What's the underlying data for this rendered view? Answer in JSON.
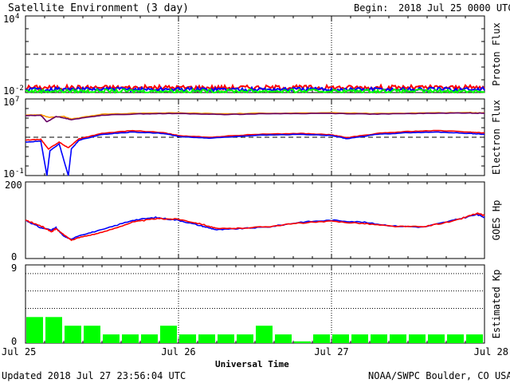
{
  "header": {
    "title": "Satellite Environment (3 day)",
    "begin_label": "Begin:",
    "begin_value": "2018 Jul 25 0000 UTC"
  },
  "footer": {
    "updated": "Updated 2018 Jul 27 23:56:04 UTC",
    "credit": "NOAA/SWPC Boulder, CO USA",
    "xlabel": "Universal Time"
  },
  "colors": {
    "red": "#ff0000",
    "blue": "#0000ff",
    "green": "#00ff00",
    "orange": "#ff9900",
    "purple": "#660066",
    "black": "#000000"
  },
  "chart_data": [
    {
      "id": "proton_flux",
      "type": "line",
      "ylabel": "Proton Flux",
      "yscale": "log",
      "ylim": [
        0.01,
        10000
      ],
      "yticks": [
        {
          "exp": "4"
        },
        {
          "exp": "-2"
        }
      ],
      "threshold": 10,
      "x_range_days": [
        0,
        3
      ],
      "series": [
        {
          "color": "red",
          "level": 0.025,
          "noise": 0.18
        },
        {
          "color": "blue",
          "level": 0.018,
          "noise": 0.15
        },
        {
          "color": "green",
          "level": 0.013,
          "noise": 0.14
        }
      ]
    },
    {
      "id": "electron_flux",
      "type": "line",
      "ylabel": "Electron Flux",
      "yscale": "log",
      "ylim": [
        0.1,
        10000000
      ],
      "yticks": [
        {
          "exp": "7"
        },
        {
          "exp": "-1"
        }
      ],
      "threshold": 1000,
      "x_range_days": [
        0,
        3
      ],
      "series": [
        {
          "color": "orange",
          "points": [
            [
              0,
              200000
            ],
            [
              0.1,
              230000
            ],
            [
              0.15,
              120000
            ],
            [
              0.25,
              150000
            ],
            [
              0.3,
              80000
            ],
            [
              0.5,
              250000
            ],
            [
              0.75,
              330000
            ],
            [
              1.0,
              350000
            ],
            [
              1.3,
              280000
            ],
            [
              1.6,
              330000
            ],
            [
              2.0,
              350000
            ],
            [
              2.3,
              300000
            ],
            [
              2.6,
              350000
            ],
            [
              2.9,
              380000
            ],
            [
              3,
              350000
            ]
          ]
        },
        {
          "color": "purple",
          "points": [
            [
              0,
              180000
            ],
            [
              0.1,
              200000
            ],
            [
              0.14,
              40000
            ],
            [
              0.2,
              150000
            ],
            [
              0.3,
              70000
            ],
            [
              0.5,
              200000
            ],
            [
              0.75,
              280000
            ],
            [
              1.0,
              300000
            ],
            [
              1.3,
              240000
            ],
            [
              1.6,
              290000
            ],
            [
              2.0,
              310000
            ],
            [
              2.3,
              260000
            ],
            [
              2.6,
              310000
            ],
            [
              2.9,
              340000
            ],
            [
              3,
              320000
            ]
          ]
        },
        {
          "color": "red",
          "points": [
            [
              0,
              500
            ],
            [
              0.1,
              600
            ],
            [
              0.15,
              60
            ],
            [
              0.22,
              300
            ],
            [
              0.28,
              80
            ],
            [
              0.35,
              700
            ],
            [
              0.5,
              2500
            ],
            [
              0.7,
              5000
            ],
            [
              0.9,
              3000
            ],
            [
              1.0,
              1500
            ],
            [
              1.2,
              1000
            ],
            [
              1.5,
              2000
            ],
            [
              1.8,
              2500
            ],
            [
              2.0,
              1800
            ],
            [
              2.1,
              900
            ],
            [
              2.3,
              2500
            ],
            [
              2.5,
              4000
            ],
            [
              2.7,
              5000
            ],
            [
              2.9,
              3500
            ],
            [
              3,
              2800
            ]
          ]
        },
        {
          "color": "blue",
          "points": [
            [
              0,
              300
            ],
            [
              0.1,
              400
            ],
            [
              0.14,
              0.1
            ],
            [
              0.16,
              40
            ],
            [
              0.22,
              200
            ],
            [
              0.28,
              0.1
            ],
            [
              0.3,
              60
            ],
            [
              0.35,
              500
            ],
            [
              0.5,
              2000
            ],
            [
              0.7,
              3500
            ],
            [
              0.9,
              2500
            ],
            [
              1.0,
              1200
            ],
            [
              1.2,
              800
            ],
            [
              1.5,
              1600
            ],
            [
              1.8,
              2000
            ],
            [
              2.0,
              1500
            ],
            [
              2.1,
              700
            ],
            [
              2.3,
              2000
            ],
            [
              2.5,
              3000
            ],
            [
              2.7,
              3500
            ],
            [
              2.9,
              2500
            ],
            [
              3,
              2000
            ]
          ]
        }
      ]
    },
    {
      "id": "goes_hp",
      "type": "line",
      "ylabel": "GOES Hp",
      "yscale": "linear",
      "ylim": [
        0,
        200
      ],
      "yticks": [
        {
          "value": "200"
        },
        {
          "value": "0"
        }
      ],
      "x_range_days": [
        0,
        3
      ],
      "series": [
        {
          "color": "blue",
          "points": [
            [
              0,
              100
            ],
            [
              0.1,
              80
            ],
            [
              0.17,
              75
            ],
            [
              0.2,
              80
            ],
            [
              0.25,
              58
            ],
            [
              0.3,
              50
            ],
            [
              0.35,
              60
            ],
            [
              0.5,
              75
            ],
            [
              0.7,
              100
            ],
            [
              0.85,
              107
            ],
            [
              1.0,
              100
            ],
            [
              1.15,
              85
            ],
            [
              1.25,
              75
            ],
            [
              1.4,
              78
            ],
            [
              1.6,
              83
            ],
            [
              1.8,
              95
            ],
            [
              2.0,
              100
            ],
            [
              2.2,
              95
            ],
            [
              2.4,
              85
            ],
            [
              2.6,
              82
            ],
            [
              2.8,
              100
            ],
            [
              2.95,
              115
            ],
            [
              3,
              108
            ]
          ]
        },
        {
          "color": "red",
          "points": [
            [
              0,
              100
            ],
            [
              0.1,
              85
            ],
            [
              0.17,
              70
            ],
            [
              0.2,
              78
            ],
            [
              0.25,
              62
            ],
            [
              0.3,
              48
            ],
            [
              0.35,
              55
            ],
            [
              0.5,
              68
            ],
            [
              0.7,
              95
            ],
            [
              0.85,
              104
            ],
            [
              1.0,
              103
            ],
            [
              1.15,
              90
            ],
            [
              1.25,
              78
            ],
            [
              1.4,
              79
            ],
            [
              1.6,
              84
            ],
            [
              1.8,
              93
            ],
            [
              2.0,
              97
            ],
            [
              2.2,
              92
            ],
            [
              2.4,
              84
            ],
            [
              2.6,
              83
            ],
            [
              2.8,
              98
            ],
            [
              2.95,
              118
            ],
            [
              3,
              112
            ]
          ]
        }
      ]
    },
    {
      "id": "estimated_kp",
      "type": "bar",
      "ylabel": "Estimated Kp",
      "ylim": [
        0,
        9
      ],
      "yticks": [
        {
          "value": "9"
        },
        {
          "value": "0"
        }
      ],
      "dotted_levels": [
        4,
        6,
        8
      ],
      "x_range_days": [
        0,
        3
      ],
      "bar_color": "green",
      "values": [
        3,
        3,
        2,
        2,
        1,
        1,
        1,
        2,
        1,
        1,
        1,
        1,
        2,
        1,
        0.2,
        1,
        1,
        1,
        1,
        1,
        1,
        1,
        1,
        1
      ]
    }
  ],
  "x_axis": {
    "ticks": [
      {
        "day": 0,
        "label": "Jul 25"
      },
      {
        "day": 1,
        "label": "Jul 26"
      },
      {
        "day": 2,
        "label": "Jul 27"
      },
      {
        "day": 3,
        "label": "Jul 28"
      }
    ]
  }
}
